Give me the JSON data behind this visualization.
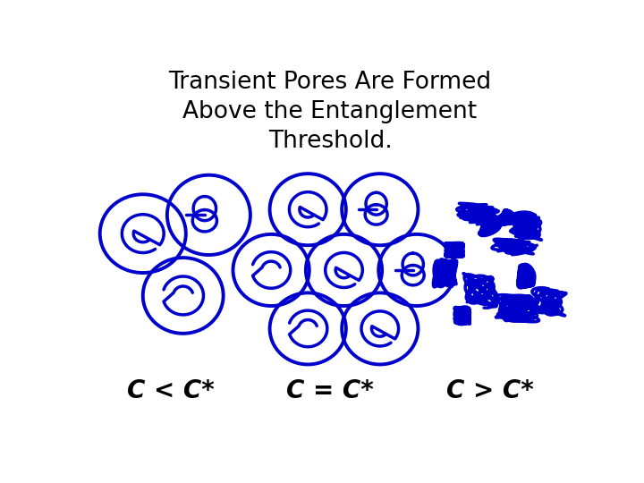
{
  "title_line1": "Transient Pores Are Formed",
  "title_line2": "Above the Entanglement",
  "title_line3": "Threshold.",
  "title_fontsize": 19,
  "title_color": "black",
  "labels": [
    "C < C*",
    "C = C*",
    "C > C*"
  ],
  "label_fontsize": 20,
  "label_color": "black",
  "polymer_color": "#0000CC",
  "bg_color": "#FFFFFF",
  "lw_circle": 2.8,
  "lw_coil": 2.5,
  "fig_w": 7.2,
  "fig_h": 5.4,
  "dpi": 100
}
